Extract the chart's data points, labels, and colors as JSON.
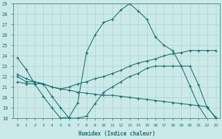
{
  "xlabel": "Humidex (Indice chaleur)",
  "xlim": [
    -0.5,
    23.5
  ],
  "ylim": [
    18,
    29
  ],
  "xticks": [
    0,
    1,
    2,
    3,
    4,
    5,
    6,
    7,
    8,
    9,
    10,
    11,
    12,
    13,
    14,
    15,
    16,
    17,
    18,
    19,
    20,
    21,
    22,
    23
  ],
  "yticks": [
    18,
    19,
    20,
    21,
    22,
    23,
    24,
    25,
    26,
    27,
    28,
    29
  ],
  "bg_color": "#cce9e9",
  "line_color": "#1a7070",
  "grid_color": "#b0d4d4",
  "line1_x": [
    0,
    1,
    2,
    3,
    4,
    5,
    6,
    7,
    8,
    9,
    10,
    11,
    12,
    13,
    14,
    15,
    16,
    17,
    18,
    19,
    20,
    21,
    22,
    23
  ],
  "line1_y": [
    23.8,
    22.7,
    21.3,
    20.1,
    19.0,
    18.0,
    18.1,
    19.5,
    24.3,
    26.0,
    27.2,
    27.5,
    28.4,
    29.0,
    28.3,
    27.5,
    25.8,
    25.0,
    24.5,
    23.0,
    21.1,
    19.2,
    17.9,
    17.9
  ],
  "line2_x": [
    0,
    1,
    2,
    3,
    4,
    5,
    6,
    7,
    8,
    9,
    10,
    11,
    12,
    13,
    14,
    15,
    16,
    17,
    18,
    19,
    20,
    21,
    22,
    23
  ],
  "line2_y": [
    21.5,
    21.3,
    21.3,
    21.3,
    21.0,
    20.8,
    21.0,
    21.3,
    21.5,
    21.8,
    22.0,
    22.3,
    22.6,
    23.0,
    23.3,
    23.5,
    23.7,
    24.0,
    24.2,
    24.3,
    24.5,
    24.5,
    24.5,
    24.5
  ],
  "line3_x": [
    0,
    1,
    2,
    3,
    4,
    5,
    6,
    7,
    8,
    9,
    10,
    11,
    12,
    13,
    14,
    15,
    16,
    17,
    18,
    19,
    20,
    21,
    22,
    23
  ],
  "line3_y": [
    22.2,
    21.8,
    21.5,
    21.3,
    21.0,
    20.8,
    20.7,
    20.5,
    20.4,
    20.3,
    20.2,
    20.2,
    20.1,
    20.0,
    19.9,
    19.8,
    19.7,
    19.6,
    19.5,
    19.4,
    19.3,
    19.2,
    19.1,
    18.0
  ],
  "line4_x": [
    0,
    1,
    2,
    3,
    4,
    5,
    6,
    7,
    8,
    9,
    10,
    11,
    12,
    13,
    14,
    15,
    16,
    17,
    18,
    19,
    20,
    21,
    22,
    23
  ],
  "line4_y": [
    22.0,
    21.5,
    21.5,
    21.3,
    20.1,
    19.0,
    18.0,
    18.0,
    18.2,
    19.4,
    20.5,
    21.0,
    21.5,
    22.0,
    22.3,
    22.8,
    23.0,
    23.0,
    23.0,
    23.0,
    23.0,
    21.2,
    19.0,
    18.1
  ]
}
